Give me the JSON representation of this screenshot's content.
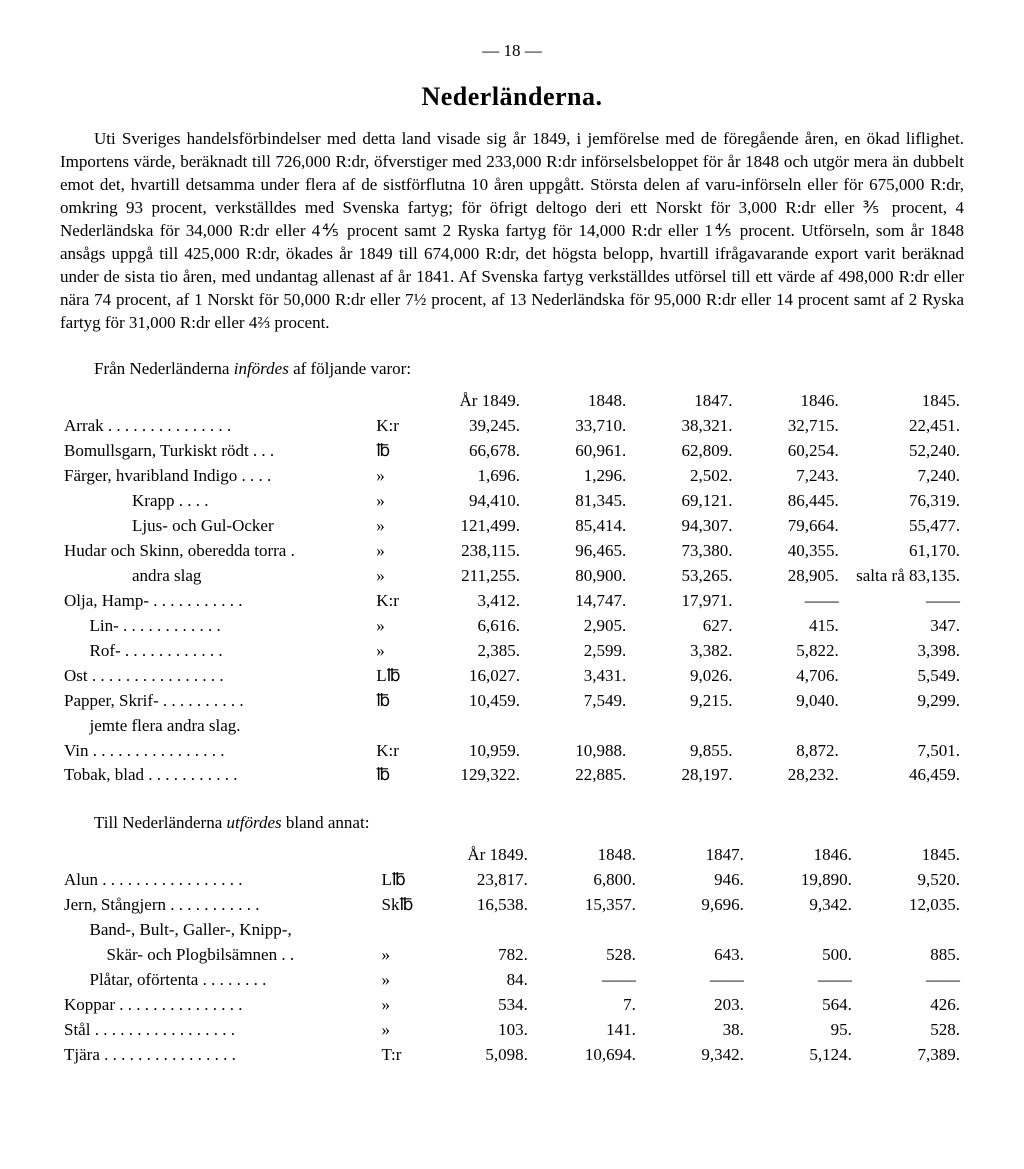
{
  "pageNumber": "— 18 —",
  "title": "Nederländerna.",
  "body": "Uti Sveriges handelsförbindelser med detta land visade sig år 1849, i jemförelse med de föregående åren, en ökad liflighet. Importens värde, beräknadt till 726,000 R:dr, öfverstiger med 233,000 R:dr införselsbeloppet för år 1848 och utgör mera än dubbelt emot det, hvartill detsamma under flera af de sistförflutna 10 åren uppgått. Största delen af varu-införseln eller för 675,000 R:dr, omkring 93 procent, verkställdes med Svenska fartyg; för öfrigt deltogo deri ett Norskt för 3,000 R:dr eller ⅗ procent, 4 Nederländska för 34,000 R:dr eller 4⅘ procent samt 2 Ryska fartyg för 14,000 R:dr eller 1⅘ procent. Utförseln, som år 1848 ansågs uppgå till 425,000 R:dr, ökades år 1849 till 674,000 R:dr, det högsta belopp, hvartill ifrågavarande export varit beräknad under de sista tio åren, med undantag allenast af år 1841. Af Svenska fartyg verkställdes utförsel till ett värde af 498,000 R:dr eller nära 74 procent, af 1 Norskt för 50,000 R:dr eller 7½ procent, af 13 Nederländska för 95,000 R:dr eller 14 procent samt af 2 Ryska fartyg för 31,000 R:dr eller 4⅔ procent.",
  "imports": {
    "intro_pre": "Från Nederländerna ",
    "intro_em": "infördes",
    "intro_post": " af följande varor:",
    "years": [
      "År 1849.",
      "1848.",
      "1847.",
      "1846.",
      "1845."
    ],
    "rows": [
      {
        "label": "Arrak . . . . . . . . . . . . . . .",
        "unit": "K:r",
        "v": [
          "39,245.",
          "33,710.",
          "38,321.",
          "32,715.",
          "22,451."
        ]
      },
      {
        "label": "Bomullsgarn, Turkiskt rödt . . .",
        "unit": "℔",
        "v": [
          "66,678.",
          "60,961.",
          "62,809.",
          "60,254.",
          "52,240."
        ]
      },
      {
        "label": "Färger, hvaribland Indigo . . . .",
        "unit": "»",
        "v": [
          "1,696.",
          "1,296.",
          "2,502.",
          "7,243.",
          "7,240."
        ]
      },
      {
        "label": "                Krapp . . . .",
        "unit": "»",
        "v": [
          "94,410.",
          "81,345.",
          "69,121.",
          "86,445.",
          "76,319."
        ]
      },
      {
        "label": "                Ljus- och Gul-Ocker",
        "unit": "»",
        "v": [
          "121,499.",
          "85,414.",
          "94,307.",
          "79,664.",
          "55,477."
        ]
      },
      {
        "label": "Hudar och Skinn, oberedda torra .",
        "unit": "»",
        "v": [
          "238,115.",
          "96,465.",
          "73,380.",
          "40,355.",
          "61,170."
        ]
      },
      {
        "label": "                andra slag",
        "unit": "»",
        "v": [
          "211,255.",
          "80,900.",
          "53,265.",
          "28,905.",
          "salta rå 83,135."
        ]
      },
      {
        "label": "Olja, Hamp- . . . . . . . . . . .",
        "unit": "K:r",
        "v": [
          "3,412.",
          "14,747.",
          "17,971.",
          "——",
          "——"
        ]
      },
      {
        "label": "      Lin- . . . . . . . . . . . .",
        "unit": "»",
        "v": [
          "6,616.",
          "2,905.",
          "627.",
          "415.",
          "347."
        ]
      },
      {
        "label": "      Rof- . . . . . . . . . . . .",
        "unit": "»",
        "v": [
          "2,385.",
          "2,599.",
          "3,382.",
          "5,822.",
          "3,398."
        ]
      },
      {
        "label": "Ost . . . . . . . . . . . . . . . .",
        "unit": "L℔",
        "v": [
          "16,027.",
          "3,431.",
          "9,026.",
          "4,706.",
          "5,549."
        ]
      },
      {
        "label": "Papper, Skrif- . . . . . . . . . .",
        "unit": "℔",
        "v": [
          "10,459.",
          "7,549.",
          "9,215.",
          "9,040.",
          "9,299."
        ]
      },
      {
        "label": "      jemte flera andra slag.",
        "unit": "",
        "v": [
          "",
          "",
          "",
          "",
          ""
        ]
      },
      {
        "label": "Vin . . . . . . . . . . . . . . . .",
        "unit": "K:r",
        "v": [
          "10,959.",
          "10,988.",
          "9,855.",
          "8,872.",
          "7,501."
        ]
      },
      {
        "label": "Tobak, blad . . . . . . . . . . .",
        "unit": "℔",
        "v": [
          "129,322.",
          "22,885.",
          "28,197.",
          "28,232.",
          "46,459."
        ]
      }
    ]
  },
  "exports": {
    "intro_pre": "Till Nederländerna ",
    "intro_em": "utfördes",
    "intro_post": " bland annat:",
    "years": [
      "År 1849.",
      "1848.",
      "1847.",
      "1846.",
      "1845."
    ],
    "rows": [
      {
        "label": "Alun . . . . . . . . . . . . . . . . .",
        "unit": "L℔",
        "v": [
          "23,817.",
          "6,800.",
          "946.",
          "19,890.",
          "9,520."
        ]
      },
      {
        "label": "Jern, Stångjern . . . . . . . . . . .",
        "unit": "Sk℔",
        "v": [
          "16,538.",
          "15,357.",
          "9,696.",
          "9,342.",
          "12,035."
        ]
      },
      {
        "label": "      Band-, Bult-, Galler-, Knipp-,",
        "unit": "",
        "v": [
          "",
          "",
          "",
          "",
          ""
        ]
      },
      {
        "label": "          Skär- och Plogbilsämnen . .",
        "unit": "»",
        "v": [
          "782.",
          "528.",
          "643.",
          "500.",
          "885."
        ]
      },
      {
        "label": "      Plåtar, oförtenta . . . . . . . .",
        "unit": "»",
        "v": [
          "84.",
          "——",
          "——",
          "——",
          "——"
        ]
      },
      {
        "label": "Koppar . . . . . . . . . . . . . . .",
        "unit": "»",
        "v": [
          "534.",
          "7.",
          "203.",
          "564.",
          "426."
        ]
      },
      {
        "label": "Stål . . . . . . . . . . . . . . . . .",
        "unit": "»",
        "v": [
          "103.",
          "141.",
          "38.",
          "95.",
          "528."
        ]
      },
      {
        "label": "Tjära . . . . . . . . . . . . . . . .",
        "unit": "T:r",
        "v": [
          "5,098.",
          "10,694.",
          "9,342.",
          "5,124.",
          "7,389."
        ]
      }
    ]
  }
}
